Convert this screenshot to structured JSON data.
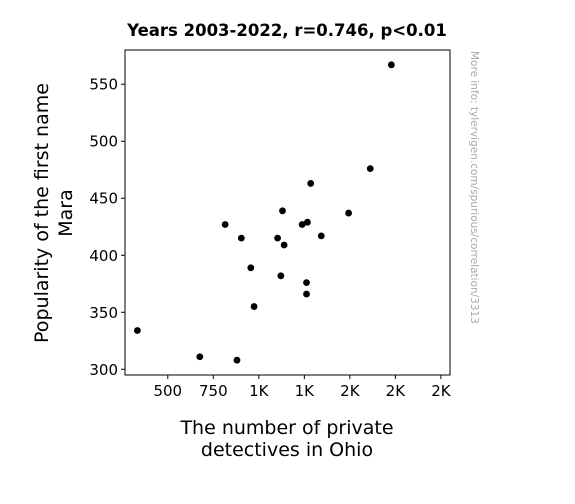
{
  "chart_data": {
    "type": "scatter",
    "title": "Years 2003-2022, r=0.746, p<0.01",
    "xlabel": [
      "The number of private",
      "detectives in Ohio"
    ],
    "ylabel": [
      "Popularity of the first name",
      "Mara"
    ],
    "side_note": "More info: tylervigen.com/spurious/correlation/3313",
    "xlim": [
      265,
      2050
    ],
    "ylim": [
      295,
      580
    ],
    "x_ticks": [
      {
        "value": 500,
        "label": "500"
      },
      {
        "value": 750,
        "label": "750"
      },
      {
        "value": 1000,
        "label": "1K"
      },
      {
        "value": 1250,
        "label": "1K"
      },
      {
        "value": 1500,
        "label": "2K"
      },
      {
        "value": 1750,
        "label": "2K"
      },
      {
        "value": 2000,
        "label": "2K"
      }
    ],
    "y_ticks": [
      300,
      350,
      400,
      450,
      500,
      550
    ],
    "grid": false,
    "point_color": "#000000",
    "points": [
      {
        "x": 333,
        "y": 334
      },
      {
        "x": 676,
        "y": 311
      },
      {
        "x": 880,
        "y": 308
      },
      {
        "x": 815,
        "y": 427
      },
      {
        "x": 904,
        "y": 415
      },
      {
        "x": 956,
        "y": 389
      },
      {
        "x": 974,
        "y": 355
      },
      {
        "x": 1103,
        "y": 415
      },
      {
        "x": 1121,
        "y": 382
      },
      {
        "x": 1130,
        "y": 439
      },
      {
        "x": 1139,
        "y": 409
      },
      {
        "x": 1238,
        "y": 427
      },
      {
        "x": 1267,
        "y": 429
      },
      {
        "x": 1262,
        "y": 376
      },
      {
        "x": 1262,
        "y": 366
      },
      {
        "x": 1285,
        "y": 463
      },
      {
        "x": 1343,
        "y": 417
      },
      {
        "x": 1493,
        "y": 437
      },
      {
        "x": 1612,
        "y": 476
      },
      {
        "x": 1728,
        "y": 567
      }
    ]
  }
}
